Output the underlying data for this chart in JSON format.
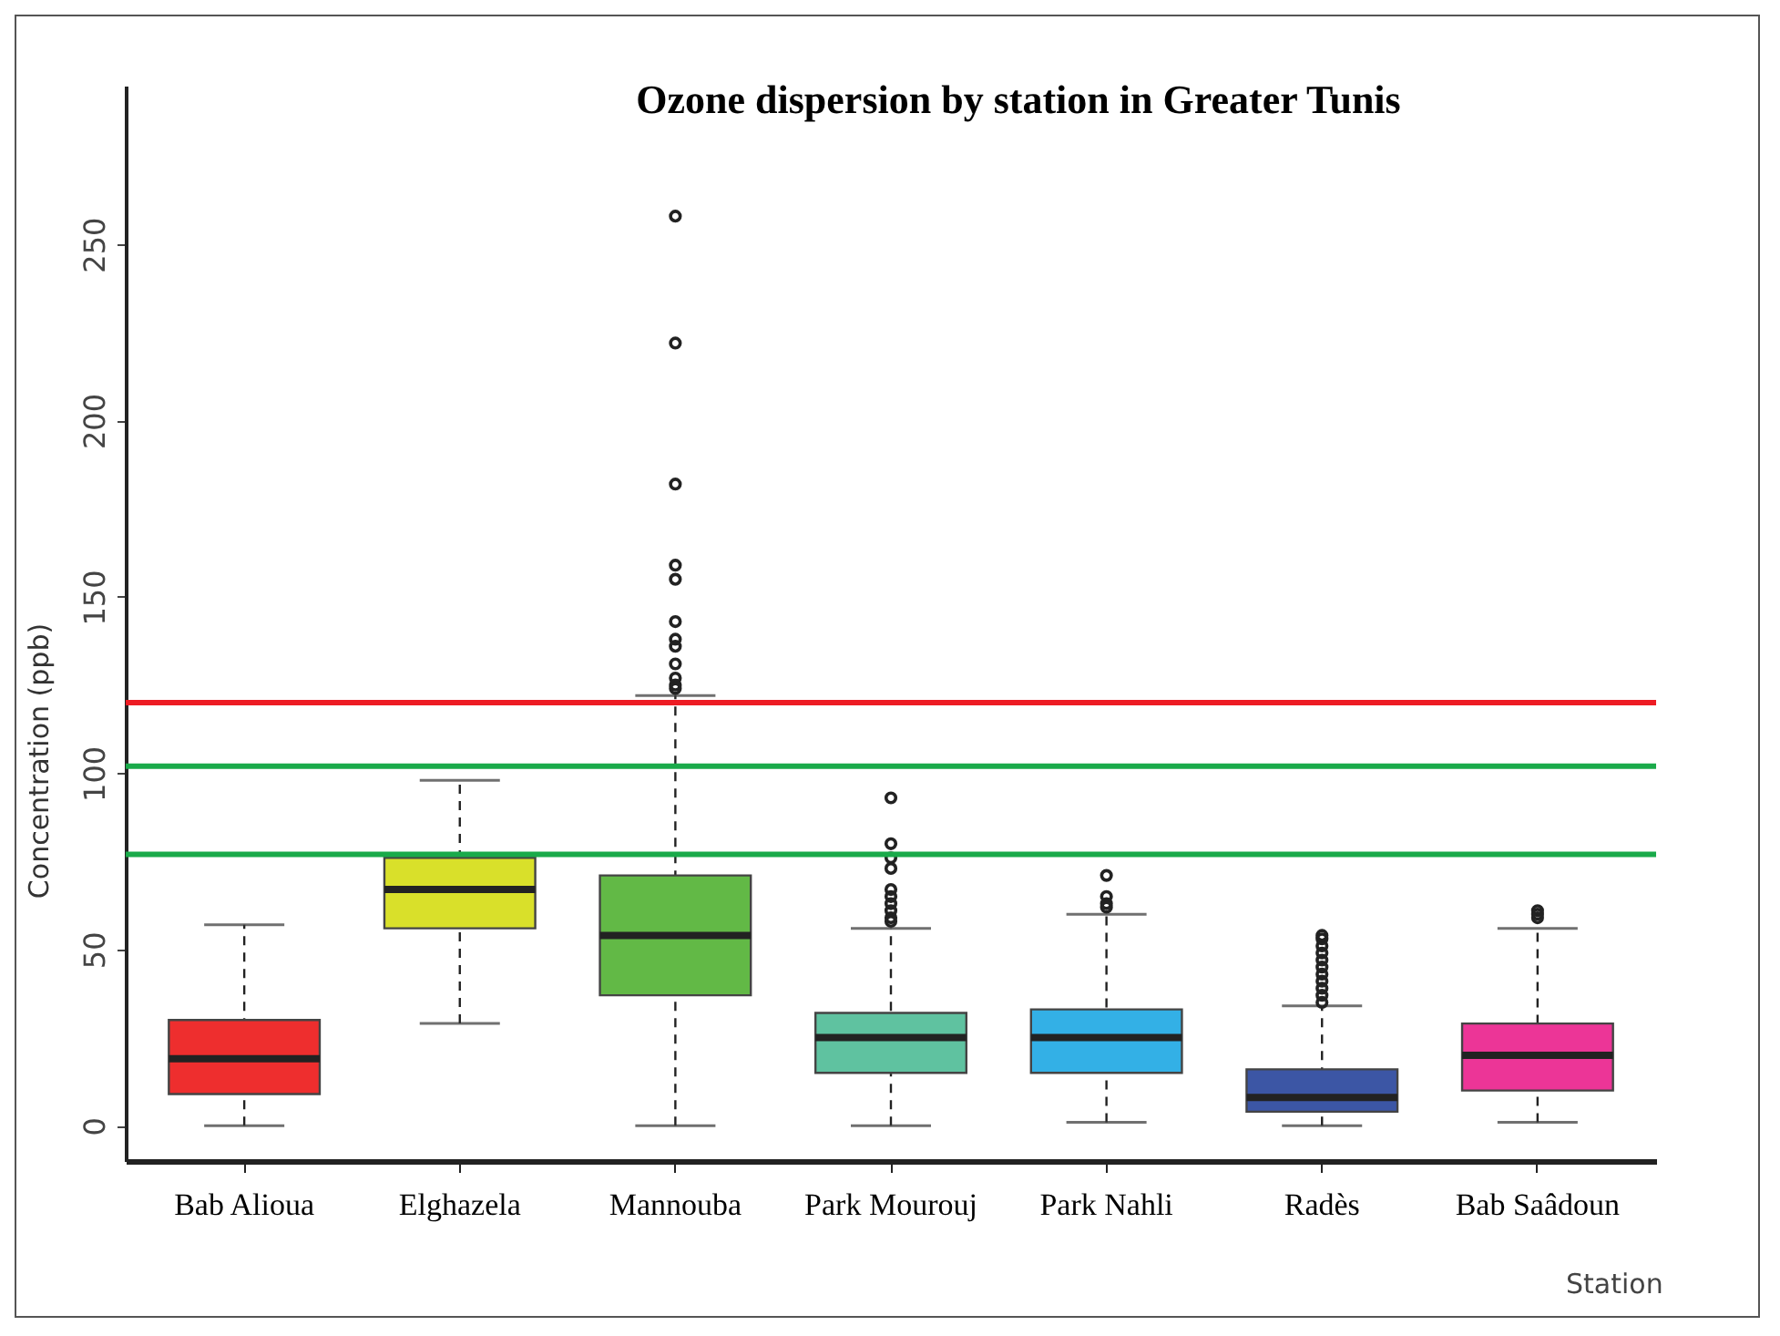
{
  "chart_data": {
    "type": "box",
    "title": "Ozone dispersion by station in Greater Tunis",
    "xlabel": "Station",
    "ylabel": "Concentration (ppb)",
    "categories": [
      "Bab Alioua",
      "Elghazela",
      "Mannouba",
      "Park Mourouj",
      "Park Nahli",
      "Radès",
      "Bab Saâdoun"
    ],
    "colors": [
      "#ee2e2e",
      "#d9e02a",
      "#62b946",
      "#5fc2a0",
      "#33b0e6",
      "#3c56a5",
      "#ec3597"
    ],
    "boxes": [
      {
        "low": 0,
        "q1": 9,
        "median": 19,
        "q3": 30,
        "high": 57
      },
      {
        "low": 29,
        "q1": 56,
        "median": 67,
        "q3": 76,
        "high": 98
      },
      {
        "low": 0,
        "q1": 37,
        "median": 54,
        "q3": 71,
        "high": 122,
        "outliers": [
          258,
          222,
          182,
          159,
          155,
          143,
          138,
          136,
          131,
          127,
          125,
          124
        ]
      },
      {
        "low": 0,
        "q1": 15,
        "median": 25,
        "q3": 32,
        "high": 56,
        "outliers": [
          93,
          80,
          76,
          73,
          67,
          65,
          63,
          61,
          59,
          58
        ]
      },
      {
        "low": 1,
        "q1": 15,
        "median": 25,
        "q3": 33,
        "high": 60,
        "outliers": [
          71,
          65,
          63,
          62
        ]
      },
      {
        "low": 0,
        "q1": 4,
        "median": 8,
        "q3": 16,
        "high": 34,
        "outliers": [
          35,
          37,
          39,
          41,
          43,
          45,
          47,
          49,
          51,
          53,
          54
        ]
      },
      {
        "low": 1,
        "q1": 10,
        "median": 20,
        "q3": 29,
        "high": 56,
        "outliers": [
          61,
          60,
          59
        ]
      }
    ],
    "ylim": [
      -10,
      295
    ],
    "yticks": [
      0,
      50,
      100,
      150,
      200,
      250
    ],
    "ref_lines": [
      {
        "axis": "y",
        "value": 120,
        "color": "#ed1c24"
      },
      {
        "axis": "y",
        "value": 102,
        "color": "#1aaa4a"
      },
      {
        "axis": "y",
        "value": 77,
        "color": "#1aaa4a"
      }
    ],
    "grid": false
  }
}
